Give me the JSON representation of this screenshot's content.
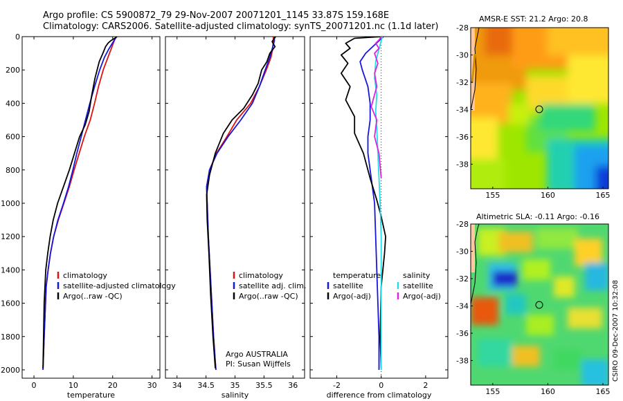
{
  "title": {
    "line1": "Argo profile: CS 5900872_79 29-Nov-2007 20071201_1145 33.87S 159.168E",
    "line2": "Climatology: CARS2006. Satellite-adjusted climatology: synTS_20071201.nc (1.1d later)"
  },
  "credit": "CSIRO 09-Dec-2007 10:32:08",
  "colors": {
    "climatology": "#dd1111",
    "satellite": "#1515dd",
    "argo": "#000000",
    "sal_satellite": "#22dde8",
    "sal_argo": "#e020e0"
  },
  "chart_data": [
    {
      "type": "line",
      "xlabel": "temperature",
      "xlim": [
        -3,
        32
      ],
      "ylim": [
        2050,
        0
      ],
      "y_reversed": true,
      "xticks": [
        0,
        10,
        20,
        30
      ],
      "yticks": [
        0,
        200,
        400,
        600,
        800,
        1000,
        1200,
        1400,
        1600,
        1800,
        2000
      ],
      "legend": {
        "position": "middle-right",
        "entries": [
          "climatology",
          "satellite-adjusted climatology",
          "Argo(..raw -QC)"
        ]
      },
      "series": [
        {
          "name": "climatology",
          "color_key": "climatology",
          "x": [
            20.8,
            20.4,
            19.6,
            18.8,
            17.6,
            16.4,
            15.4,
            14.3,
            12.8,
            11.5,
            10.2,
            9.0,
            7.6,
            6.2,
            5.0,
            4.2,
            3.6,
            3.1,
            2.6,
            2.3
          ],
          "y": [
            0,
            25,
            75,
            125,
            200,
            300,
            400,
            500,
            600,
            700,
            800,
            900,
            1000,
            1100,
            1200,
            1300,
            1400,
            1500,
            1800,
            2000
          ]
        },
        {
          "name": "satellite-adjusted climatology",
          "color_key": "satellite",
          "x": [
            21.0,
            20.3,
            19.0,
            17.9,
            16.7,
            15.4,
            14.2,
            13.1,
            12.0,
            10.9,
            9.9,
            8.8,
            7.5,
            6.1,
            5.0,
            4.2,
            3.6,
            3.1,
            2.6,
            2.3
          ],
          "y": [
            0,
            25,
            75,
            125,
            200,
            300,
            400,
            500,
            600,
            700,
            800,
            900,
            1000,
            1100,
            1200,
            1300,
            1400,
            1500,
            1800,
            2000
          ]
        },
        {
          "name": "Argo(..raw -QC)",
          "color_key": "argo",
          "x": [
            21.1,
            20.5,
            19.5,
            18.8,
            18.2,
            17.5,
            16.6,
            15.5,
            14.7,
            14.0,
            13.0,
            11.6,
            10.3,
            9.0,
            7.5,
            6.0,
            4.9,
            4.1,
            3.5,
            3.0,
            2.6,
            2.3
          ],
          "y": [
            0,
            10,
            25,
            40,
            60,
            100,
            150,
            250,
            350,
            450,
            530,
            600,
            700,
            800,
            900,
            1000,
            1100,
            1200,
            1300,
            1400,
            1600,
            1990
          ]
        }
      ]
    },
    {
      "type": "line",
      "xlabel": "salinity",
      "xlim": [
        33.8,
        36.2
      ],
      "ylim": [
        2050,
        0
      ],
      "y_reversed": true,
      "xticks": [
        34,
        34.5,
        35,
        35.5,
        36
      ],
      "legend": {
        "position": "middle-right",
        "entries": [
          "climatology",
          "satellite adj. clim.",
          "Argo(..raw -QC)"
        ]
      },
      "annotation": {
        "line1": "Argo AUSTRALIA",
        "line2": "PI: Susan Wijffels"
      },
      "series": [
        {
          "name": "climatology",
          "color_key": "climatology",
          "x": [
            35.66,
            35.66,
            35.65,
            35.62,
            35.54,
            35.42,
            35.27,
            35.03,
            34.86,
            34.68,
            34.56,
            34.51,
            34.52,
            34.54,
            34.57,
            34.6,
            34.63,
            34.66,
            34.67
          ],
          "y": [
            0,
            25,
            75,
            125,
            200,
            300,
            400,
            500,
            600,
            700,
            800,
            900,
            1000,
            1200,
            1400,
            1600,
            1800,
            1950,
            2000
          ]
        },
        {
          "name": "satellite adj. clim.",
          "color_key": "satellite",
          "x": [
            35.68,
            35.68,
            35.64,
            35.6,
            35.52,
            35.42,
            35.3,
            35.1,
            34.88,
            34.69,
            34.56,
            34.51,
            34.52,
            34.54,
            34.57,
            34.6,
            34.63,
            34.66,
            34.67
          ],
          "y": [
            0,
            25,
            75,
            125,
            200,
            300,
            400,
            500,
            600,
            700,
            800,
            900,
            1000,
            1200,
            1400,
            1600,
            1800,
            1950,
            2000
          ]
        },
        {
          "name": "Argo(..raw -QC)",
          "color_key": "argo",
          "x": [
            35.7,
            35.64,
            35.69,
            35.6,
            35.55,
            35.46,
            35.4,
            35.3,
            35.15,
            34.95,
            34.8,
            34.66,
            34.56,
            34.51,
            34.52,
            34.55,
            34.58,
            34.62,
            34.66
          ],
          "y": [
            0,
            30,
            60,
            100,
            150,
            200,
            280,
            350,
            430,
            500,
            580,
            700,
            830,
            950,
            1100,
            1300,
            1550,
            1800,
            1990
          ]
        }
      ]
    },
    {
      "type": "line",
      "xlabel": "difference from climatology",
      "xlim": [
        -3.2,
        3.0
      ],
      "ylim": [
        2050,
        0
      ],
      "y_reversed": true,
      "xticks": [
        -2,
        0,
        2
      ],
      "zero_line": true,
      "legend": {
        "position": "middle-right",
        "entries": [
          "temperature",
          "satellite",
          "Argo(-adj)",
          "salinity",
          "satellite",
          "Argo(-adj)"
        ]
      },
      "series": [
        {
          "name": "satellite",
          "color_key": "satellite",
          "x": [
            0.1,
            -0.3,
            -0.7,
            -0.95,
            -0.85,
            -0.6,
            -0.5,
            -0.5,
            -0.6,
            -0.6,
            -0.5,
            -0.4,
            -0.3,
            -0.25,
            -0.2,
            -0.15,
            -0.1,
            -0.1
          ],
          "y": [
            0,
            50,
            100,
            150,
            200,
            300,
            400,
            500,
            600,
            700,
            800,
            900,
            1000,
            1200,
            1400,
            1600,
            1800,
            2000
          ]
        },
        {
          "name": "Argo(-adj)",
          "color_key": "argo",
          "x": [
            0.0,
            -1.2,
            -1.6,
            -1.4,
            -1.8,
            -1.5,
            -1.8,
            -1.4,
            -1.6,
            -1.2,
            -1.2,
            -0.8,
            -0.5,
            -0.2,
            0.0,
            0.2,
            0.15,
            0.0,
            -0.05,
            0.0
          ],
          "y": [
            0,
            10,
            40,
            70,
            110,
            160,
            220,
            300,
            380,
            480,
            580,
            700,
            850,
            980,
            1080,
            1200,
            1300,
            1500,
            1800,
            1990
          ]
        },
        {
          "name": "satellite",
          "color_key": "sal_satellite",
          "x": [
            0.05,
            -0.05,
            -0.25,
            -0.3,
            -0.2,
            -0.25,
            -0.2,
            -0.15,
            -0.1,
            -0.05,
            0.0,
            0.0,
            0.0
          ],
          "y": [
            0,
            50,
            150,
            250,
            350,
            450,
            550,
            700,
            850,
            1000,
            1200,
            1600,
            2000
          ]
        },
        {
          "name": "Argo(-adj)",
          "color_key": "sal_argo",
          "x": [
            0.0,
            -0.1,
            -0.25,
            -0.1,
            -0.3,
            -0.15,
            -0.3,
            -0.2,
            -0.45,
            -0.2,
            -0.3,
            -0.1,
            0.0
          ],
          "y": [
            0,
            20,
            40,
            70,
            100,
            160,
            220,
            300,
            420,
            500,
            600,
            700,
            850
          ]
        }
      ]
    },
    {
      "type": "heatmap",
      "title": "AMSR-E SST: 21.2 Argo: 20.8",
      "xlim": [
        153,
        165.5
      ],
      "ylim": [
        -39.8,
        -28
      ],
      "xticks": [
        155,
        160,
        165
      ],
      "yticks": [
        -28,
        -30,
        -32,
        -34,
        -36,
        -38
      ],
      "marker": {
        "lon": 159.168,
        "lat": -33.87
      },
      "colormap": "jet",
      "pattern": "warm (orange/red) in north-west, cooling to green/cyan then blue toward south-east"
    },
    {
      "type": "heatmap",
      "title": "Altimetric SLA: -0.11 Argo: -0.16",
      "xlim": [
        153,
        165.5
      ],
      "ylim": [
        -39.8,
        -28
      ],
      "xticks": [
        155,
        160,
        165
      ],
      "yticks": [
        -28,
        -30,
        -32,
        -34,
        -36,
        -38
      ],
      "marker": {
        "lon": 159.168,
        "lat": -33.87
      },
      "colormap": "jet",
      "pattern": "mostly green with scattered yellow/orange highs and a blue eddy near 157.5E 32S"
    }
  ]
}
